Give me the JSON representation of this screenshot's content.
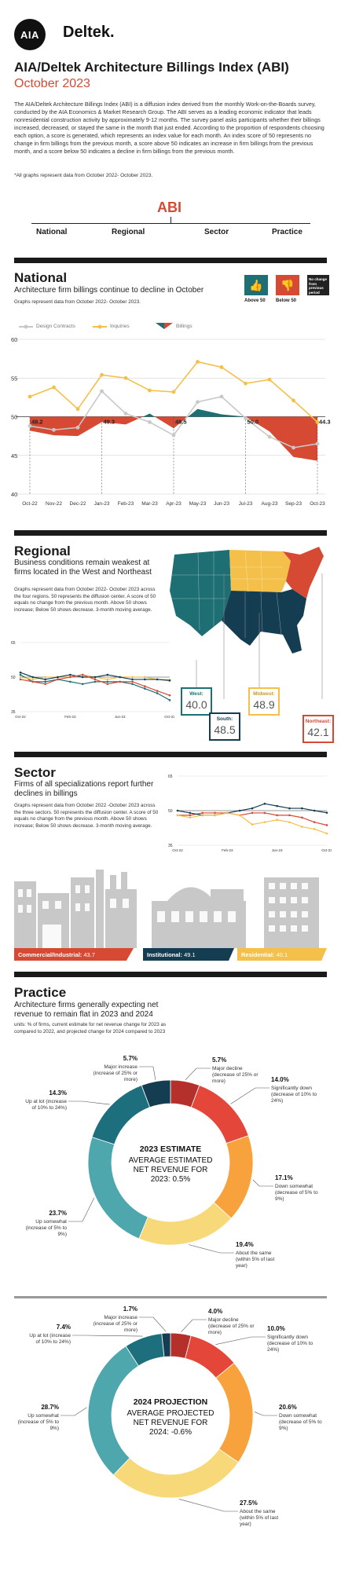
{
  "header": {
    "logo_aia": "AIA",
    "logo_deltek": "Deltek.",
    "title": "AIA/Deltek Architecture Billings Index (ABI)",
    "subtitle": "October 2023",
    "intro": "The AIA/Deltek Architecture Billings Index (ABI) is a diffusion index derived from the monthly Work-on-the-Boards survey, conducted by the AIA Economics & Market Research Group. The ABI serves as a leading economic indicator that leads nonresidential construction activity by approximately 9-12 months. The survey panel asks participants whether their billings increased, decreased, or stayed the same in the month that just ended. According to the proportion of respondents choosing each option, a score is generated, which represents an index value for each month. An index score of 50 represents no change in firm billings from the previous month, a score above 50 indicates an increase in firm billings from the previous month, and a score below 50 indicates a decline in firm billings from the previous month.",
    "note": "*All graphs represent data from October 2022- October 2023."
  },
  "abi_nav": {
    "word": "ABI",
    "items": [
      "National",
      "Regional",
      "Sector",
      "Practice"
    ]
  },
  "national": {
    "title": "National",
    "subtitle": "Architecture firm billings continue to decline in October",
    "small": "Graphs represent data from October 2022- October 2023.",
    "icons": {
      "above": "Above 50",
      "below": "Below 50",
      "nochange": "No change from previous period",
      "colors": {
        "above": "#1e6f73",
        "below": "#d64933",
        "nochange": "#222222"
      }
    },
    "legend": [
      "Design Contracts",
      "Inquiries",
      "Billings"
    ],
    "chart_data": {
      "type": "line",
      "x": [
        "Oct-22",
        "Nov-22",
        "Dec-22",
        "Jan-23",
        "Feb-23",
        "Mar-23",
        "Apr-23",
        "May-23",
        "Jun-23",
        "Jul-23",
        "Aug-23",
        "Sep-23",
        "Oct-23"
      ],
      "ylim": [
        40,
        60
      ],
      "yticks": [
        40,
        45,
        50,
        55,
        60
      ],
      "series": [
        {
          "name": "Design Contracts",
          "color": "#c8c8c8",
          "values": [
            48.8,
            48.3,
            48.6,
            53.3,
            50.4,
            49.3,
            47.6,
            51.9,
            52.6,
            49.8,
            47.4,
            46.0,
            46.5
          ]
        },
        {
          "name": "Inquiries",
          "color": "#f5c04a",
          "values": [
            52.6,
            53.8,
            51.0,
            55.4,
            55.0,
            53.4,
            53.2,
            57.1,
            56.4,
            54.3,
            54.8,
            52.1,
            49.3
          ]
        },
        {
          "name": "Billings",
          "color": "#d64933",
          "values": [
            48.2,
            47.6,
            47.5,
            49.3,
            49.0,
            50.4,
            48.5,
            51.0,
            50.3,
            50.0,
            48.1,
            44.8,
            44.3
          ]
        }
      ],
      "data_labels": [
        {
          "x": "Oct-22",
          "text": "48.2"
        },
        {
          "x": "Jan-23",
          "text": "49.3"
        },
        {
          "x": "Apr-23",
          "text": "48.5"
        },
        {
          "x": "Jul-23",
          "text": "50.0"
        },
        {
          "x": "Oct-23",
          "text": "44.3"
        }
      ]
    }
  },
  "regional": {
    "title": "Regional",
    "subtitle": "Business conditions remain weakest at firms located in the West and Northeast",
    "small": "Graphs represent data from October 2022- October 2023 across the four regions. 50 represents the diffusion center. A score of 50 equals no change from the previous month. Above 50 shows increase; Below 50 shows decrease. 3-month moving average.",
    "regions": [
      {
        "name": "West:",
        "value": "40.0",
        "color": "#1e6f73"
      },
      {
        "name": "Midwest:",
        "value": "48.9",
        "color": "#f5c04a"
      },
      {
        "name": "South:",
        "value": "48.5",
        "color": "#143d52"
      },
      {
        "name": "Northeast:",
        "value": "42.1",
        "color": "#d64933"
      }
    ],
    "chart_data": {
      "type": "line",
      "xticks": [
        "Oct-22",
        "Feb-23",
        "Jun-23",
        "Oct-23"
      ],
      "ylim": [
        35,
        65
      ],
      "yticks": [
        35,
        50,
        65
      ],
      "series": [
        {
          "name": "West",
          "color": "#1e6f73",
          "values": [
            51,
            48,
            48,
            49,
            48,
            47,
            48,
            48,
            48,
            47,
            45,
            43,
            40
          ]
        },
        {
          "name": "Midwest",
          "color": "#f5c04a",
          "values": [
            50,
            49,
            50,
            50,
            50,
            51,
            50,
            49,
            50,
            50,
            50,
            49,
            48.9
          ]
        },
        {
          "name": "South",
          "color": "#143d52",
          "values": [
            52,
            50,
            49,
            50,
            51,
            50,
            50,
            51,
            50,
            49,
            49,
            49,
            48.5
          ]
        },
        {
          "name": "Northeast",
          "color": "#d64933",
          "values": [
            49,
            48,
            47,
            49,
            50,
            51,
            49,
            47,
            48,
            48,
            46,
            44,
            42.1
          ]
        }
      ]
    }
  },
  "sector": {
    "title": "Sector",
    "subtitle": "Firms of all specializations report further declines in billings",
    "small": "Graphs represent data from October 2022 -October 2023 across the three sectors. 50 represents the diffusion center. A score of 50 equals no change from the previous month. Above 50 shows increase; Below 50 shows decrease. 3-month moving average.",
    "chart_data": {
      "type": "line",
      "xticks": [
        "Oct-22",
        "Feb-23",
        "Jun-23",
        "Oct-23"
      ],
      "ylim": [
        35,
        65
      ],
      "yticks": [
        35,
        50,
        65
      ],
      "series": [
        {
          "name": "Commercial/Industrial",
          "color": "#d64933",
          "values": [
            48,
            48,
            49,
            49,
            49,
            48,
            49,
            49,
            48,
            48,
            47,
            45,
            43.7
          ]
        },
        {
          "name": "Institutional",
          "color": "#143d52",
          "values": [
            50,
            49,
            48,
            48,
            49,
            50,
            51,
            53,
            52,
            51,
            51,
            50,
            49.1
          ]
        },
        {
          "name": "Residential",
          "color": "#f5c04a",
          "values": [
            48,
            47,
            48,
            48,
            49,
            48,
            44,
            45,
            46,
            45,
            43,
            42,
            40.1
          ]
        }
      ]
    },
    "labels": [
      {
        "name": "Commercial/Industrial:",
        "value": "43.7",
        "color": "#d64933"
      },
      {
        "name": "Institutional:",
        "value": "49.1",
        "color": "#143d52"
      },
      {
        "name": "Residential:",
        "value": "40.1",
        "color": "#f5c04a"
      }
    ]
  },
  "practice": {
    "title": "Practice",
    "subtitle": "Architecture firms generally expecting net revenue to remain flat in 2023 and 2024",
    "small": "units: % of firms, current estimate for net revenue change for 2023 as compared to 2022, and projected change for 2024 compared to 2023",
    "chart_data": [
      {
        "type": "pie",
        "center_title": "2023 ESTIMATE",
        "center_text": "AVERAGE ESTIMATED NET REVENUE FOR 2023: 0.5%",
        "slices": [
          {
            "value": 5.7,
            "label": "5.7%",
            "text": "Major decline (decrease of 25% or more)",
            "color": "#b5302a"
          },
          {
            "value": 14.0,
            "label": "14.0%",
            "text": "Significantly down (decrease of 10% to 24%)",
            "color": "#e4473a"
          },
          {
            "value": 17.1,
            "label": "17.1%",
            "text": "Down somewhat (decrease of 5% to 9%)",
            "color": "#f7a23c"
          },
          {
            "value": 19.4,
            "label": "19.4%",
            "text": "About the same (within 5% of last year)",
            "color": "#f8d97a"
          },
          {
            "value": 23.7,
            "label": "23.7%",
            "text": "Up somewhat (increase of 5% to 9%)",
            "color": "#4fa7ae"
          },
          {
            "value": 14.3,
            "label": "14.3%",
            "text": "Up at lot (increase of 10% to 24%)",
            "color": "#1e6f7d"
          },
          {
            "value": 5.7,
            "label": "5.7%",
            "text": "Major increase (increase of 25% or more)",
            "color": "#143d52"
          }
        ]
      },
      {
        "type": "pie",
        "center_title": "2024 PROJECTION",
        "center_text": "AVERAGE PROJECTED NET REVENUE FOR 2024: -0.6%",
        "slices": [
          {
            "value": 4.0,
            "label": "4.0%",
            "text": "Major decline (decrease of 25% or more)",
            "color": "#b5302a"
          },
          {
            "value": 10.0,
            "label": "10.0%",
            "text": "Significantly down (decrease of 10% to 24%)",
            "color": "#e4473a"
          },
          {
            "value": 20.6,
            "label": "20.6%",
            "text": "Down somewhat (decrease of 5% to 9%)",
            "color": "#f7a23c"
          },
          {
            "value": 27.5,
            "label": "27.5%",
            "text": "About the same (within 5% of last year)",
            "color": "#f8d97a"
          },
          {
            "value": 28.7,
            "label": "28.7%",
            "text": "Up somewhat (increase of 5% to 9%)",
            "color": "#4fa7ae"
          },
          {
            "value": 7.4,
            "label": "7.4%",
            "text": "Up at lot (increase of 10% to 24%)",
            "color": "#1e6f7d"
          },
          {
            "value": 1.7,
            "label": "1.7%",
            "text": "Major increase (increase of 25% or more)",
            "color": "#143d52"
          }
        ]
      }
    ]
  }
}
